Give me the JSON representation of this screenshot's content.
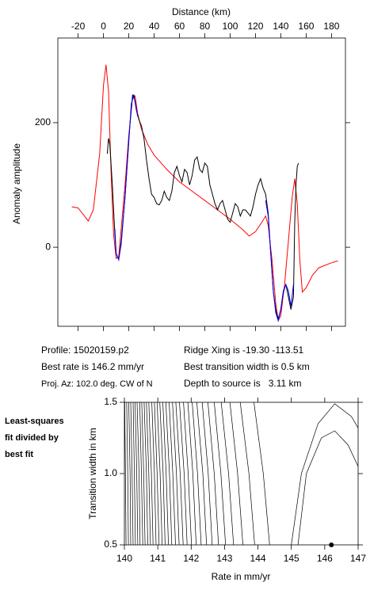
{
  "chart_data": [
    {
      "type": "line",
      "xlabel": "Distance (km)",
      "ylabel": "Anomaly amplitude",
      "xlim": [
        -36,
        191
      ],
      "ylim": [
        -127,
        336
      ],
      "xticks": [
        -20,
        0,
        20,
        40,
        60,
        80,
        100,
        120,
        140,
        160,
        180
      ],
      "yticks": [
        0,
        200
      ],
      "series": [
        {
          "color": "#ff0000",
          "x": [
            -25,
            -20,
            -15,
            -12,
            -8,
            -3,
            0,
            2,
            4,
            6,
            8,
            10,
            12,
            14,
            17,
            20,
            23,
            25,
            27,
            30,
            35,
            40,
            50,
            60,
            70,
            80,
            90,
            100,
            110,
            115,
            120,
            125,
            128,
            130,
            133,
            136,
            138,
            140,
            143,
            146,
            149,
            151,
            153,
            155,
            157,
            160,
            165,
            170,
            180,
            185
          ],
          "values": [
            65,
            63,
            50,
            42,
            60,
            150,
            260,
            293,
            250,
            120,
            20,
            -18,
            -15,
            30,
            100,
            180,
            240,
            243,
            215,
            190,
            165,
            148,
            125,
            105,
            90,
            75,
            60,
            45,
            28,
            18,
            25,
            40,
            50,
            35,
            -20,
            -90,
            -118,
            -110,
            -60,
            10,
            80,
            110,
            70,
            -20,
            -72,
            -65,
            -45,
            -33,
            -25,
            -22
          ]
        },
        {
          "color": "#000000",
          "x": [
            3,
            4,
            5,
            7,
            9,
            10,
            12,
            14,
            17,
            20,
            22,
            24,
            26,
            28,
            30,
            32,
            34,
            36,
            38,
            40,
            42,
            44,
            46,
            48,
            50,
            52,
            54,
            56,
            58,
            60,
            62,
            64,
            66,
            68,
            70,
            72,
            74,
            76,
            78,
            80,
            82,
            84,
            86,
            88,
            90,
            92,
            94,
            96,
            98,
            100,
            102,
            104,
            106,
            108,
            110,
            112,
            114,
            116,
            118,
            120,
            122,
            124,
            126,
            128,
            130,
            132,
            134,
            136,
            138,
            140,
            142,
            144,
            146,
            148,
            150,
            151,
            152,
            153,
            154
          ],
          "values": [
            150,
            175,
            165,
            100,
            20,
            -10,
            -20,
            10,
            80,
            170,
            230,
            245,
            220,
            205,
            195,
            175,
            140,
            110,
            85,
            80,
            70,
            68,
            75,
            90,
            80,
            75,
            90,
            120,
            130,
            115,
            105,
            125,
            120,
            100,
            115,
            140,
            145,
            125,
            120,
            135,
            130,
            100,
            85,
            70,
            60,
            70,
            75,
            60,
            45,
            40,
            55,
            70,
            65,
            50,
            60,
            60,
            55,
            50,
            65,
            85,
            100,
            110,
            95,
            85,
            55,
            -10,
            -70,
            -100,
            -115,
            -100,
            -70,
            -60,
            -80,
            -100,
            -80,
            40,
            100,
            130,
            135
          ]
        },
        {
          "color": "#0000ff",
          "x": [
            9,
            10,
            12,
            14,
            17,
            20,
            23,
            25,
            27,
            null,
            128,
            130,
            132,
            134,
            136,
            138,
            140,
            142,
            144,
            146,
            148,
            150
          ],
          "values": [
            30,
            -10,
            -20,
            5,
            80,
            175,
            245,
            235,
            210,
            null,
            75,
            50,
            -10,
            -70,
            -105,
            -118,
            -100,
            -72,
            -60,
            -70,
            -95,
            -60
          ]
        }
      ]
    },
    {
      "type": "contour",
      "xlabel": "Rate in mm/yr",
      "ylabel": "Transition width in km",
      "annotation": [
        "Least-squares",
        "fit divided by",
        "best fit"
      ],
      "xlim": [
        140,
        147
      ],
      "ylim": [
        0.5,
        1.5
      ],
      "xticks": [
        140,
        141,
        142,
        143,
        144,
        145,
        146,
        147
      ],
      "yticks": [
        {
          "value": 0.5,
          "label": "0.5"
        },
        {
          "value": 1,
          "label": "1.0"
        },
        {
          "value": 1.5,
          "label": "1.5"
        }
      ],
      "color": "#000000",
      "contours": [
        {
          "x": [
            140.05,
            140.03,
            140.01
          ],
          "y": [
            0.5,
            1,
            1.5
          ]
        },
        {
          "x": [
            140.12,
            140.1,
            140.07
          ],
          "y": [
            0.5,
            1,
            1.5
          ]
        },
        {
          "x": [
            140.19,
            140.17,
            140.13
          ],
          "y": [
            0.5,
            1,
            1.5
          ]
        },
        {
          "x": [
            140.26,
            140.23,
            140.19
          ],
          "y": [
            0.5,
            1,
            1.5
          ]
        },
        {
          "x": [
            140.33,
            140.3,
            140.26
          ],
          "y": [
            0.5,
            1,
            1.5
          ]
        },
        {
          "x": [
            140.4,
            140.37,
            140.32
          ],
          "y": [
            0.5,
            1,
            1.5
          ]
        },
        {
          "x": [
            140.47,
            140.44,
            140.38
          ],
          "y": [
            0.5,
            1,
            1.5
          ]
        },
        {
          "x": [
            140.55,
            140.51,
            140.46
          ],
          "y": [
            0.5,
            1,
            1.5
          ]
        },
        {
          "x": [
            140.62,
            140.58,
            140.52
          ],
          "y": [
            0.5,
            1,
            1.5
          ]
        },
        {
          "x": [
            140.7,
            140.66,
            140.59
          ],
          "y": [
            0.5,
            1,
            1.5
          ]
        },
        {
          "x": [
            140.78,
            140.73,
            140.66
          ],
          "y": [
            0.5,
            1,
            1.5
          ]
        },
        {
          "x": [
            140.86,
            140.81,
            140.73
          ],
          "y": [
            0.5,
            1,
            1.5
          ]
        },
        {
          "x": [
            140.95,
            140.9,
            140.82
          ],
          "y": [
            0.5,
            1,
            1.5
          ]
        },
        {
          "x": [
            141.04,
            140.98,
            140.9
          ],
          "y": [
            0.5,
            1,
            1.5
          ]
        },
        {
          "x": [
            141.13,
            141.07,
            140.98
          ],
          "y": [
            0.5,
            1,
            1.5
          ]
        },
        {
          "x": [
            141.22,
            141.16,
            141.06
          ],
          "y": [
            0.5,
            1,
            1.5
          ]
        },
        {
          "x": [
            141.32,
            141.25,
            141.15
          ],
          "y": [
            0.5,
            1,
            1.5
          ]
        },
        {
          "x": [
            141.42,
            141.35,
            141.24
          ],
          "y": [
            0.5,
            1,
            1.5
          ]
        },
        {
          "x": [
            141.53,
            141.45,
            141.34
          ],
          "y": [
            0.5,
            1,
            1.5
          ]
        },
        {
          "x": [
            141.64,
            141.56,
            141.44
          ],
          "y": [
            0.5,
            1,
            1.5
          ]
        },
        {
          "x": [
            141.76,
            141.67,
            141.54
          ],
          "y": [
            0.5,
            1,
            1.5
          ]
        },
        {
          "x": [
            141.88,
            141.79,
            141.65
          ],
          "y": [
            0.5,
            1,
            1.5
          ]
        },
        {
          "x": [
            142.01,
            141.91,
            141.77
          ],
          "y": [
            0.5,
            1,
            1.5
          ]
        },
        {
          "x": [
            142.15,
            142.05,
            141.9
          ],
          "y": [
            0.5,
            1,
            1.5
          ]
        },
        {
          "x": [
            142.3,
            142.19,
            142.03
          ],
          "y": [
            0.5,
            1,
            1.5
          ]
        },
        {
          "x": [
            142.46,
            142.35,
            142.17
          ],
          "y": [
            0.5,
            1,
            1.5
          ]
        },
        {
          "x": [
            142.63,
            142.51,
            142.33
          ],
          "y": [
            0.5,
            1,
            1.5
          ]
        },
        {
          "x": [
            142.82,
            142.69,
            142.5
          ],
          "y": [
            0.5,
            1,
            1.5
          ]
        },
        {
          "x": [
            143.03,
            142.89,
            142.69
          ],
          "y": [
            0.5,
            1,
            1.5
          ]
        },
        {
          "x": [
            143.27,
            143.12,
            142.9
          ],
          "y": [
            0.5,
            1,
            1.5
          ]
        },
        {
          "x": [
            143.55,
            143.39,
            143.16
          ],
          "y": [
            0.5,
            1,
            1.5
          ]
        },
        {
          "x": [
            143.9,
            143.73,
            143.47
          ],
          "y": [
            0.5,
            1,
            1.5
          ]
        },
        {
          "x": [
            144.35,
            144.16,
            143.88
          ],
          "y": [
            0.5,
            1,
            1.5
          ]
        },
        {
          "x": [
            145.0,
            145.3,
            145.8,
            146.3,
            146.8,
            147.0
          ],
          "y": [
            0.5,
            1.0,
            1.35,
            1.49,
            1.4,
            1.32
          ]
        },
        {
          "x": [
            145.2,
            145.45,
            145.9,
            146.3,
            146.7,
            147.0
          ],
          "y": [
            0.5,
            1.0,
            1.25,
            1.3,
            1.2,
            1.05
          ]
        }
      ],
      "best": {
        "x": 146.2,
        "y": 0.5
      }
    }
  ],
  "info": {
    "profile": "Profile: 15020159.p2",
    "rate": "Best rate is 146.2 mm/yr",
    "azimuth": "Proj. Az: 102.0 deg. CW of N",
    "ridge": "Ridge Xing is -19.30 -113.51",
    "width": "Best transition width is 0.5 km",
    "depth": "Depth to source is   3.11 km"
  }
}
